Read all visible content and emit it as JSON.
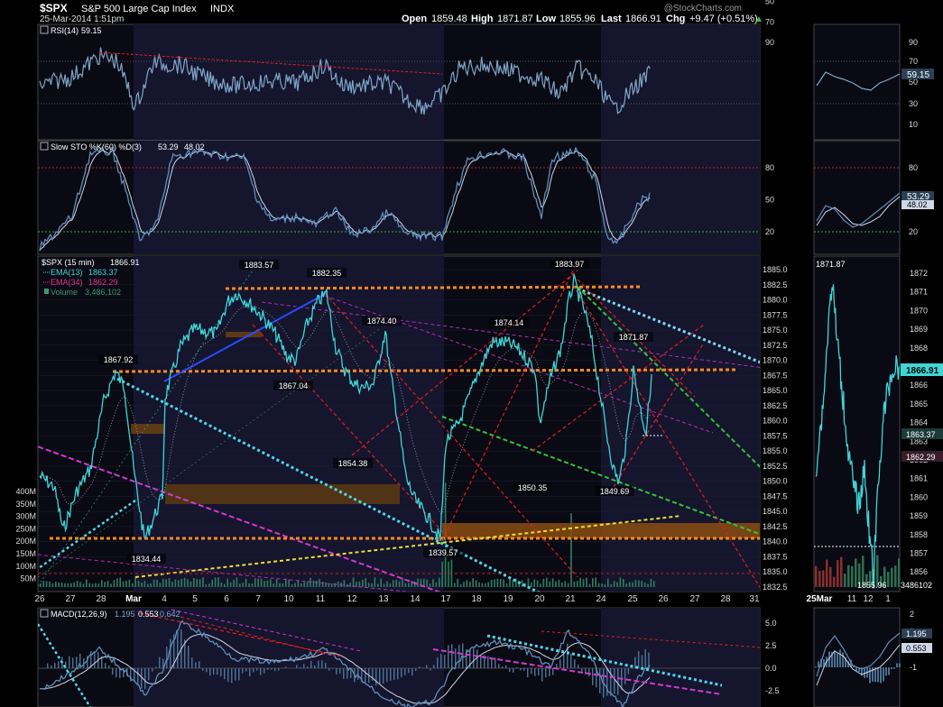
{
  "header": {
    "symbol": "$SPX",
    "name": "S&P 500 Large Cap Index",
    "exchange": "INDX",
    "datetime": "25-Mar-2014 1:51pm",
    "open_label": "Open",
    "open": "1859.48",
    "high_label": "High",
    "high": "1871.87",
    "low_label": "Low",
    "low": "1855.96",
    "last_label": "Last",
    "last": "1866.91",
    "chg_label": "Chg",
    "chg": "+9.47 (+0.51%)",
    "watermark": "@StockCharts.com"
  },
  "colors": {
    "price": "#3fd6d6",
    "rsi": "#7fa7c9",
    "red": "#e02020",
    "orange": "#ff8a1f",
    "cyan": "#4fd8e8",
    "magenta": "#d03ad0",
    "green": "#3ac03a",
    "yellow": "#e8e030",
    "blue": "#2a4cff",
    "band": "#6b3f10",
    "shade": "#101024"
  },
  "rsi_panel": {
    "label": "RSI(14)",
    "value": "59.15",
    "ticks": [
      {
        "v": 90,
        "t": "90"
      },
      {
        "v": 70,
        "t": "70"
      },
      {
        "v": 50,
        "t": "50"
      },
      {
        "v": 30,
        "t": "30"
      },
      {
        "v": 10,
        "t": "10"
      }
    ],
    "mini_value": "59.15"
  },
  "sto_panel": {
    "label": "Slow STO %K(60) %D(3)",
    "k": "53.29",
    "d": "48.02",
    "ticks": [
      {
        "v": 80,
        "t": "80"
      },
      {
        "v": 50,
        "t": "50"
      },
      {
        "v": 20,
        "t": "20"
      }
    ],
    "mini_k": "53.29",
    "mini_d": "48.02"
  },
  "price_panel": {
    "title": "$SPX (15 min)",
    "title_value": "1866.91",
    "ema13_label": "EMA(13)",
    "ema13": "1863.37",
    "ema34_label": "EMA(34)",
    "ema34": "1862.29",
    "volume_label": "Volume",
    "volume": "3,486,102",
    "right_ticks": [
      "1885.0",
      "1882.5",
      "1880.0",
      "1877.5",
      "1875.0",
      "1872.5",
      "1870.0",
      "1867.5",
      "1865.0",
      "1862.5",
      "1860.0",
      "1857.5",
      "1855.0",
      "1852.5",
      "1850.0",
      "1847.5",
      "1845.0",
      "1842.5",
      "1840.0",
      "1837.5",
      "1835.0",
      "1832.5"
    ],
    "volume_ticks": [
      "400M",
      "350M",
      "300M",
      "250M",
      "200M",
      "150M",
      "100M",
      "50M"
    ],
    "annotations": [
      "1883.57",
      "1882.35",
      "1874.40",
      "1874.14",
      "1883.97",
      "1871.87",
      "1867.92",
      "1867.04",
      "1854.38",
      "1850.35",
      "1849.69",
      "1839.57",
      "1834.44"
    ],
    "mini_ticks": [
      "1872",
      "1871",
      "1870",
      "1869",
      "1868",
      "1867",
      "1866",
      "1865",
      "1864",
      "1863",
      "1862",
      "1861",
      "1860",
      "1859",
      "1858",
      "1857",
      "1856"
    ],
    "mini_high": "1871.87",
    "mini_low": "1855.96",
    "mini_last": "1866.91",
    "mini_ema13": "1863.37",
    "mini_ema34": "1862.29",
    "mini_volume": "3486102"
  },
  "x_axis": {
    "labels": [
      "26",
      "27",
      "28",
      "Mar",
      "4",
      "5",
      "6",
      "7",
      "10",
      "11",
      "12",
      "13",
      "14",
      "17",
      "18",
      "19",
      "20",
      "21",
      "24",
      "25",
      "26",
      "27",
      "28",
      "31"
    ],
    "mini_labels": [
      "25Mar",
      "11",
      "12",
      "1"
    ]
  },
  "macd_panel": {
    "label": "MACD(12,26,9)",
    "macd": "1.195",
    "signal": "0.553",
    "hist": "0.642",
    "ticks": [
      {
        "v": 5.0,
        "t": "5.0"
      },
      {
        "v": 2.5,
        "t": "2.5"
      },
      {
        "v": 0.0,
        "t": "0.0"
      },
      {
        "v": -2.5,
        "t": "-2.5"
      }
    ],
    "mini_ticks": [
      "2",
      "1",
      "0",
      "-1"
    ],
    "mini_macd": "1.195",
    "mini_signal": "0.553"
  },
  "chart_data": {
    "type": "line",
    "title": "$SPX S&P 500 Large Cap Index INDX",
    "interval": "15 min",
    "ylim": [
      1832.5,
      1886.5
    ],
    "x": [
      "26",
      "27",
      "28",
      "Mar",
      "4",
      "5",
      "6",
      "7",
      "10",
      "11",
      "12",
      "13",
      "14",
      "17",
      "18",
      "19",
      "20",
      "21",
      "24",
      "25"
    ],
    "series": [
      {
        "name": "$SPX (15 min)",
        "values": [
          1848,
          1852,
          1867.9,
          1835,
          1866,
          1872,
          1880,
          1877,
          1871,
          1880,
          1866,
          1870,
          1845,
          1840,
          1860,
          1872,
          1858,
          1880,
          1850,
          1866.9
        ]
      }
    ],
    "price_levels": [
      {
        "label": "1883.57",
        "value": 1883.57
      },
      {
        "label": "1882.35",
        "value": 1882.35
      },
      {
        "label": "1874.40",
        "value": 1874.4
      },
      {
        "label": "1874.14",
        "value": 1874.14
      },
      {
        "label": "1883.97",
        "value": 1883.97
      },
      {
        "label": "1871.87",
        "value": 1871.87
      },
      {
        "label": "1867.92",
        "value": 1867.92
      },
      {
        "label": "1867.04",
        "value": 1867.04
      },
      {
        "label": "1854.38",
        "value": 1854.38
      },
      {
        "label": "1850.35",
        "value": 1850.35
      },
      {
        "label": "1849.69",
        "value": 1849.69
      },
      {
        "label": "1839.57",
        "value": 1839.57
      },
      {
        "label": "1834.44",
        "value": 1834.44
      }
    ],
    "grid": true
  }
}
